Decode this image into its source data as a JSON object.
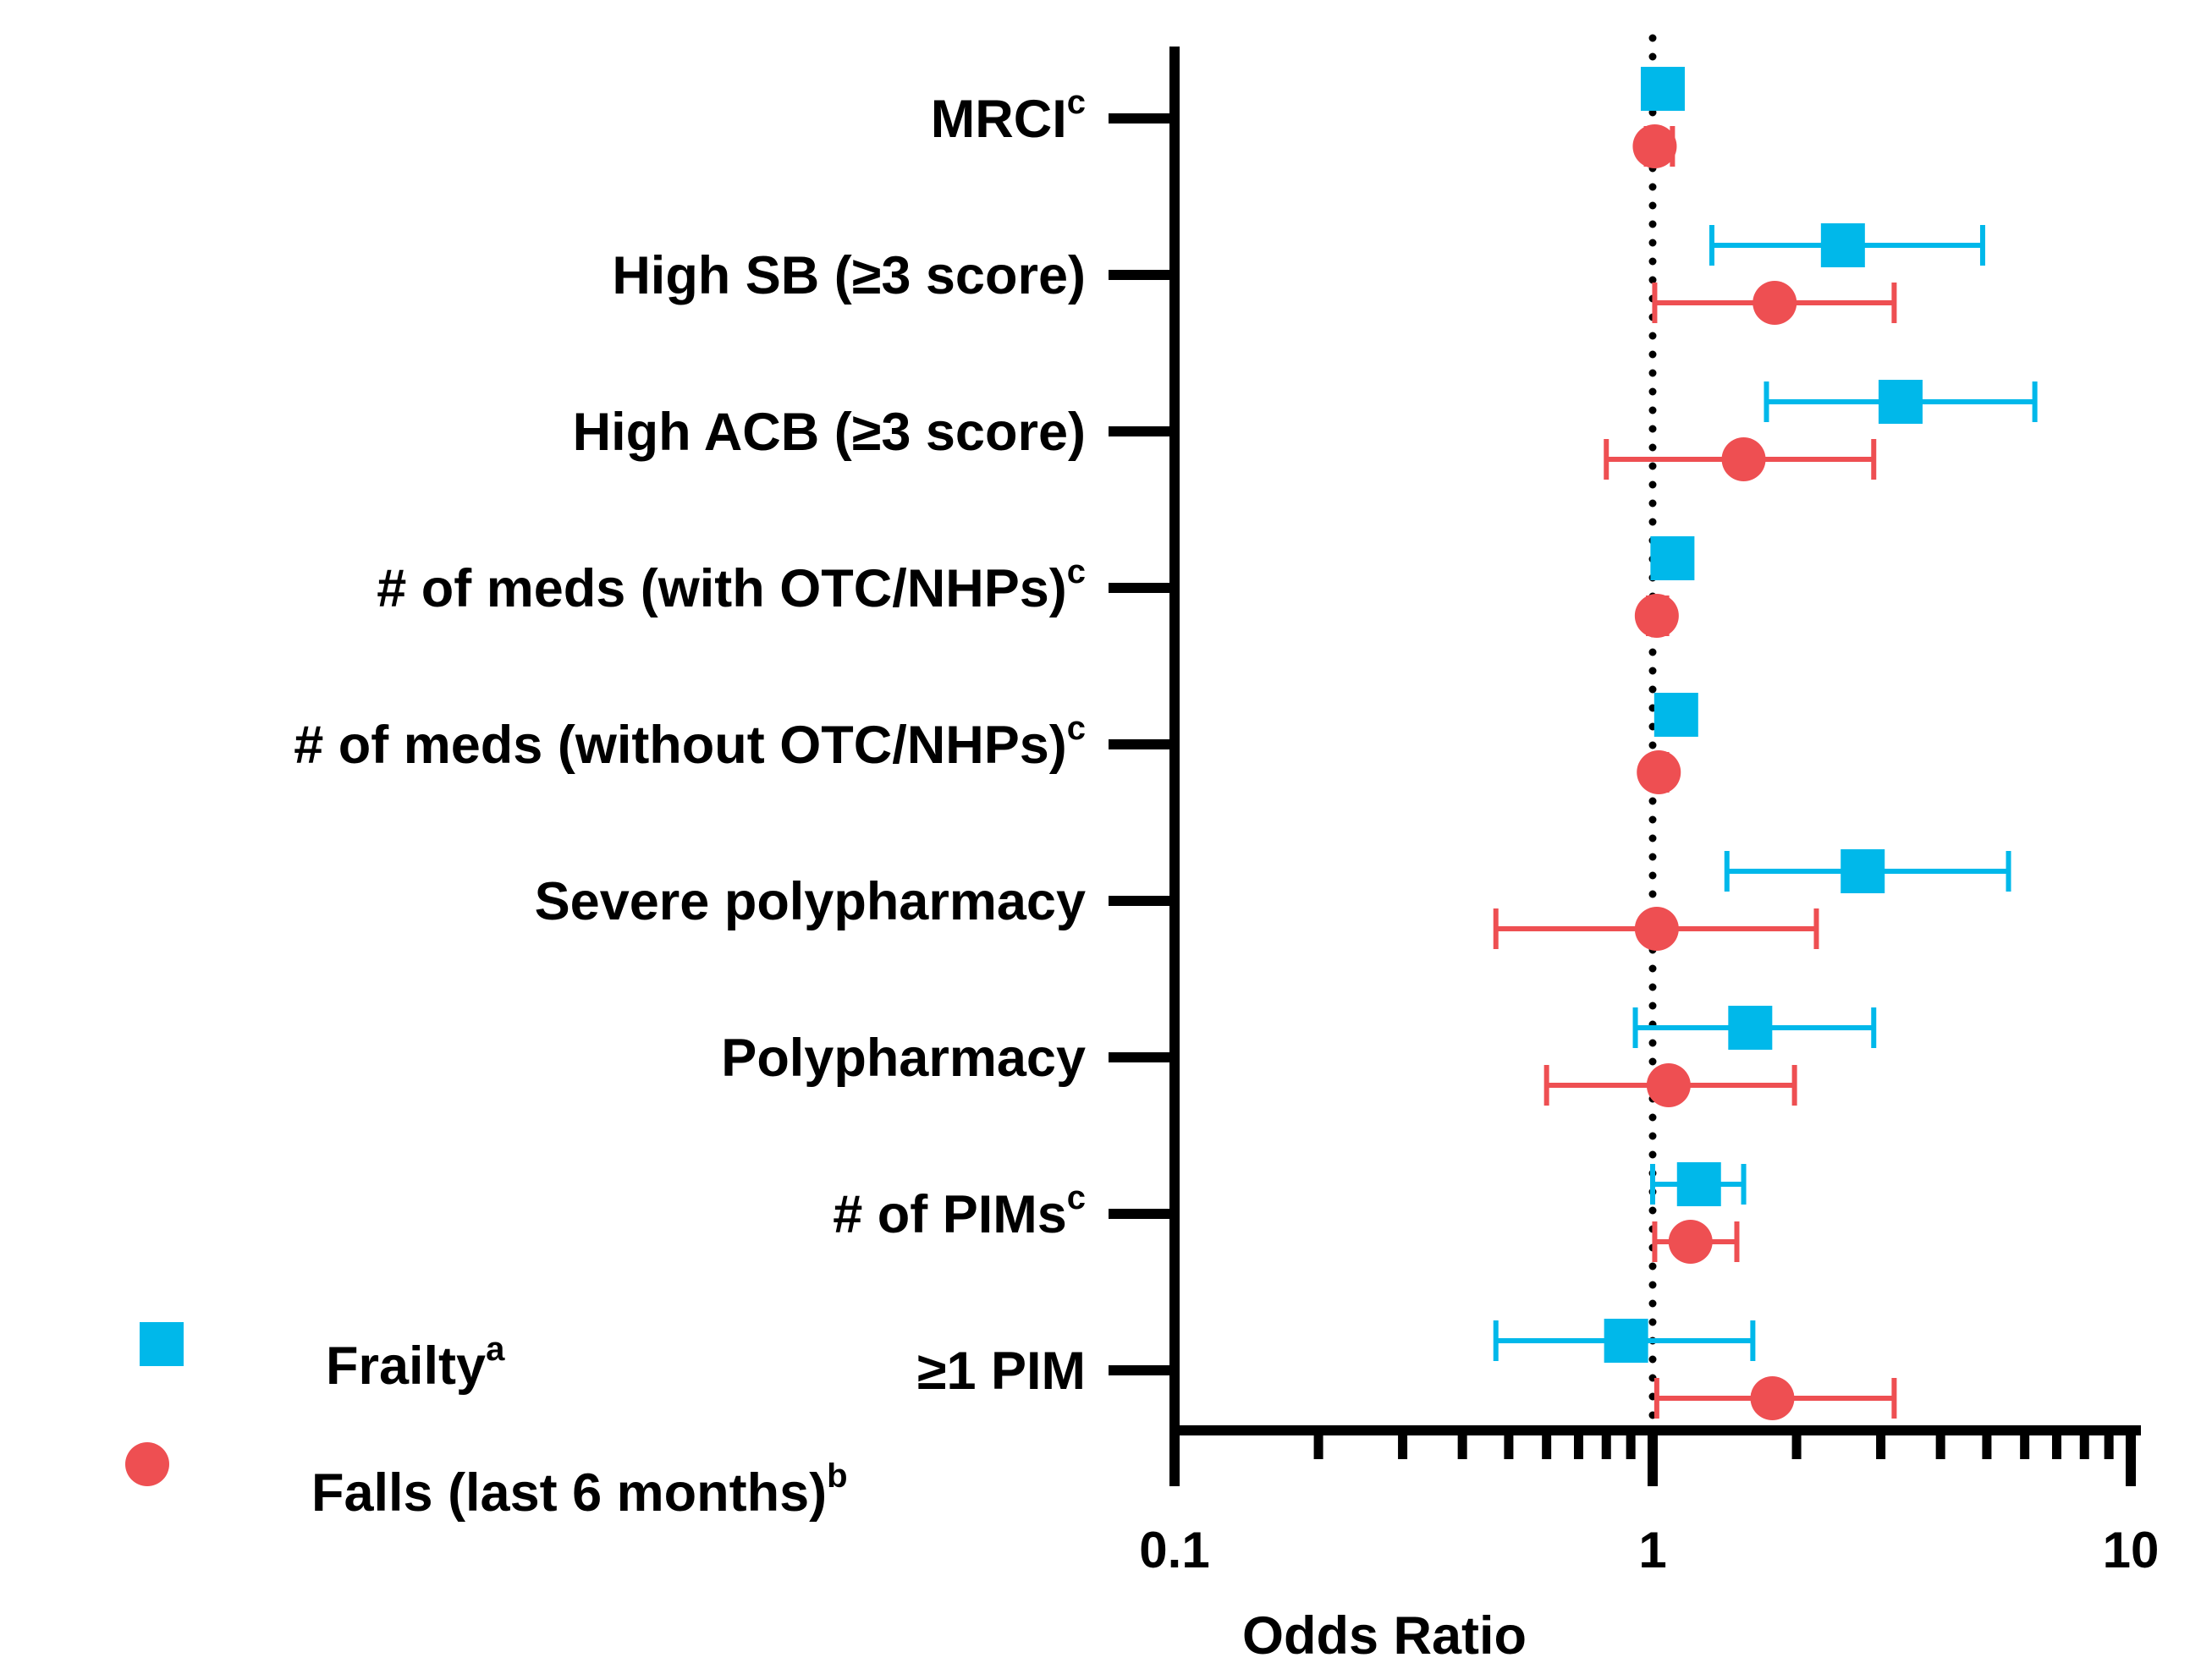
{
  "chart_data": {
    "type": "scatter",
    "subtype": "forest-plot",
    "xlabel": "Odds Ratio",
    "x_scale": "log",
    "xlim": [
      0.1,
      10
    ],
    "x_ticks": [
      {
        "value": 0.1,
        "label": "0.1"
      },
      {
        "value": 1,
        "label": "1"
      },
      {
        "value": 10,
        "label": "10"
      }
    ],
    "reference_line": {
      "x": 1,
      "style": "dotted"
    },
    "grid": false,
    "categories": [
      {
        "label": "MRCI",
        "sup": "c"
      },
      {
        "label": "High SB (≥3 score)",
        "sup": ""
      },
      {
        "label": "High ACB (≥3 score)",
        "sup": ""
      },
      {
        "label": "# of meds (with OTC/NHPs)",
        "sup": "c"
      },
      {
        "label": "# of meds (without OTC/NHPs)",
        "sup": "c"
      },
      {
        "label": "Severe polypharmacy",
        "sup": ""
      },
      {
        "label": "Polypharmacy",
        "sup": ""
      },
      {
        "label": "# of PIMs",
        "sup": "c"
      },
      {
        "label": "≥1 PIM",
        "sup": ""
      }
    ],
    "series": [
      {
        "name": "Frailty",
        "name_sup": "a",
        "marker": "square",
        "color": "#00B8EA",
        "points": [
          {
            "or": 1.05,
            "lo": 1.02,
            "hi": 1.08
          },
          {
            "or": 2.5,
            "lo": 1.33,
            "hi": 4.9
          },
          {
            "or": 3.3,
            "lo": 1.73,
            "hi": 6.3
          },
          {
            "or": 1.1,
            "lo": 1.03,
            "hi": 1.17
          },
          {
            "or": 1.12,
            "lo": 1.04,
            "hi": 1.2
          },
          {
            "or": 2.75,
            "lo": 1.43,
            "hi": 5.55
          },
          {
            "or": 1.6,
            "lo": 0.92,
            "hi": 2.9
          },
          {
            "or": 1.25,
            "lo": 1.0,
            "hi": 1.55
          },
          {
            "or": 0.88,
            "lo": 0.47,
            "hi": 1.62
          }
        ]
      },
      {
        "name": "Falls (last 6 months)",
        "name_sup": "b",
        "marker": "circle",
        "color": "#EE4F52",
        "points": [
          {
            "or": 1.01,
            "lo": 0.97,
            "hi": 1.1
          },
          {
            "or": 1.8,
            "lo": 1.01,
            "hi": 3.2
          },
          {
            "or": 1.55,
            "lo": 0.8,
            "hi": 2.9
          },
          {
            "or": 1.02,
            "lo": 0.98,
            "hi": 1.07
          },
          {
            "or": 1.03,
            "lo": 1.0,
            "hi": 1.07
          },
          {
            "or": 1.02,
            "lo": 0.47,
            "hi": 2.2
          },
          {
            "or": 1.08,
            "lo": 0.6,
            "hi": 1.98
          },
          {
            "or": 1.2,
            "lo": 1.01,
            "hi": 1.5
          },
          {
            "or": 1.78,
            "lo": 1.02,
            "hi": 3.2
          }
        ]
      }
    ],
    "legend": {
      "position": "bottom-left"
    }
  }
}
